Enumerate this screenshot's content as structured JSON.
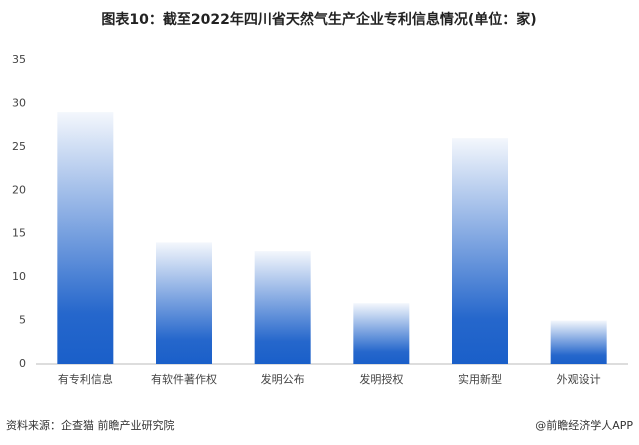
{
  "chart_data": {
    "type": "bar",
    "title": "图表10：截至2022年四川省天然气生产企业专利信息情况(单位：家)",
    "categories": [
      "有专利信息",
      "有软件著作权",
      "发明公布",
      "发明授权",
      "实用新型",
      "外观设计"
    ],
    "values": [
      29,
      14,
      13,
      7,
      26,
      5
    ],
    "color": "#1a5fc9",
    "ylim": [
      0,
      35
    ],
    "yticks": [
      0,
      5,
      10,
      15,
      20,
      25,
      30,
      35
    ],
    "source": "资料来源：企查猫 前瞻产业研究院",
    "credit": "@前瞻经济学人APP"
  }
}
